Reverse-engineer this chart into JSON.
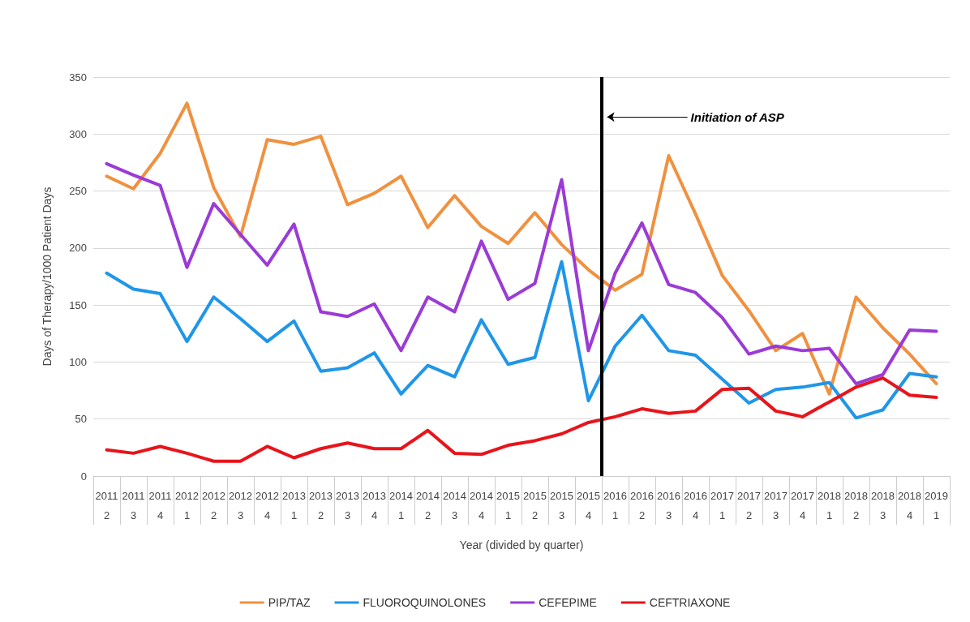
{
  "chart_data": {
    "type": "line",
    "xlabel": "Year (divided by quarter)",
    "ylabel": "Days of Therapy/1000 Patient Days",
    "categories": [
      "2011\n2",
      "2011\n3",
      "2011\n4",
      "2012\n1",
      "2012\n2",
      "2012\n3",
      "2012\n4",
      "2013\n1",
      "2013\n2",
      "2013\n3",
      "2013\n4",
      "2014\n1",
      "2014\n2",
      "2014\n3",
      "2014\n4",
      "2015\n1",
      "2015\n2",
      "2015\n3",
      "2015\n4",
      "2016\n1",
      "2016\n2",
      "2016\n3",
      "2016\n4",
      "2017\n1",
      "2017\n2",
      "2017\n3",
      "2017\n4",
      "2018\n1",
      "2018\n2",
      "2018\n3",
      "2018\n4",
      "2019\n1"
    ],
    "series": [
      {
        "name": "PIP/TAZ",
        "color": "#f0913f",
        "values": [
          263,
          252,
          283,
          327,
          253,
          210,
          295,
          291,
          298,
          238,
          248,
          263,
          218,
          246,
          219,
          204,
          231,
          203,
          181,
          163,
          177,
          281,
          230,
          176,
          145,
          110,
          125,
          72,
          157,
          130,
          107,
          81
        ]
      },
      {
        "name": "FLUOROQUINOLONES",
        "color": "#1f96e8",
        "values": [
          178,
          164,
          160,
          118,
          157,
          138,
          118,
          136,
          92,
          95,
          108,
          72,
          97,
          87,
          137,
          98,
          104,
          188,
          66,
          114,
          141,
          110,
          106,
          85,
          64,
          76,
          78,
          82,
          51,
          58,
          90,
          87
        ]
      },
      {
        "name": "CEFEPIME",
        "color": "#9b3bd6",
        "values": [
          274,
          264,
          255,
          183,
          239,
          212,
          185,
          221,
          144,
          140,
          151,
          110,
          157,
          144,
          206,
          155,
          169,
          260,
          110,
          178,
          222,
          168,
          161,
          139,
          107,
          114,
          110,
          112,
          81,
          89,
          128,
          127
        ]
      },
      {
        "name": "CEFTRIAXONE",
        "color": "#e8141a",
        "values": [
          23,
          20,
          26,
          20,
          13,
          13,
          26,
          16,
          24,
          29,
          24,
          24,
          40,
          20,
          19,
          27,
          31,
          37,
          47,
          52,
          59,
          55,
          57,
          76,
          77,
          57,
          52,
          65,
          78,
          86,
          71,
          69
        ]
      }
    ],
    "ylim": [
      0,
      350
    ],
    "yticks": [
      0,
      50,
      100,
      150,
      200,
      250,
      300,
      350
    ],
    "grid": "y",
    "legend": "bottom",
    "marker": "none",
    "line_style": "solid",
    "ref_lines": [
      {
        "axis": "x",
        "value": "2016\n1",
        "label": "Initiation of ASP",
        "color": "#000000"
      }
    ]
  }
}
